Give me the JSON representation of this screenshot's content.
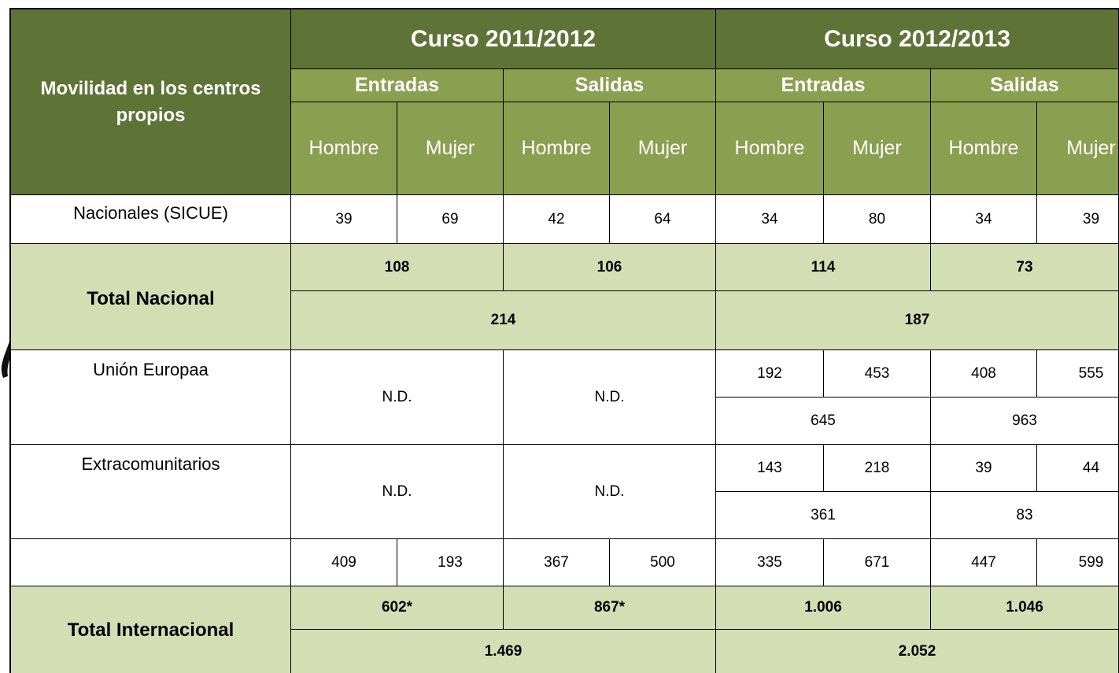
{
  "header": {
    "corner": "Movilidad en los centros propios",
    "courses": [
      "Curso 2011/2012",
      "Curso 2012/2013"
    ],
    "groups": [
      "Entradas",
      "Salidas",
      "Entradas",
      "Salidas"
    ],
    "genders": [
      "Hombre",
      "Mujer",
      "Hombre",
      "Mujer",
      "Hombre",
      "Mujer",
      "Hombre",
      "Mujer"
    ]
  },
  "rows": {
    "nacionales": {
      "label": "Nacionales (SICUE)",
      "values": [
        "39",
        "69",
        "42",
        "64",
        "34",
        "80",
        "34",
        "39"
      ]
    },
    "total_nacional": {
      "label": "Total Nacional",
      "subtotals": [
        "108",
        "106",
        "114",
        "73"
      ],
      "totals": [
        "214",
        "187"
      ]
    },
    "union_europea": {
      "label": "Unión Europaa",
      "nd": [
        "N.D.",
        "N.D."
      ],
      "values": [
        "192",
        "453",
        "408",
        "555"
      ],
      "subtotals": [
        "645",
        "963"
      ]
    },
    "extracomunitarios": {
      "label": "Extracomunitarios",
      "nd": [
        "N.D.",
        "N.D."
      ],
      "values": [
        "143",
        "218",
        "39",
        "44"
      ],
      "subtotals": [
        "361",
        "83"
      ]
    },
    "internacional_detalle": {
      "values": [
        "409",
        "193",
        "367",
        "500",
        "335",
        "671",
        "447",
        "599"
      ]
    },
    "total_internacional": {
      "label": "Total Internacional",
      "subtotals": [
        "602*",
        "867*",
        "1.006",
        "1.046"
      ],
      "totals": [
        "1.469",
        "2.052"
      ]
    }
  }
}
